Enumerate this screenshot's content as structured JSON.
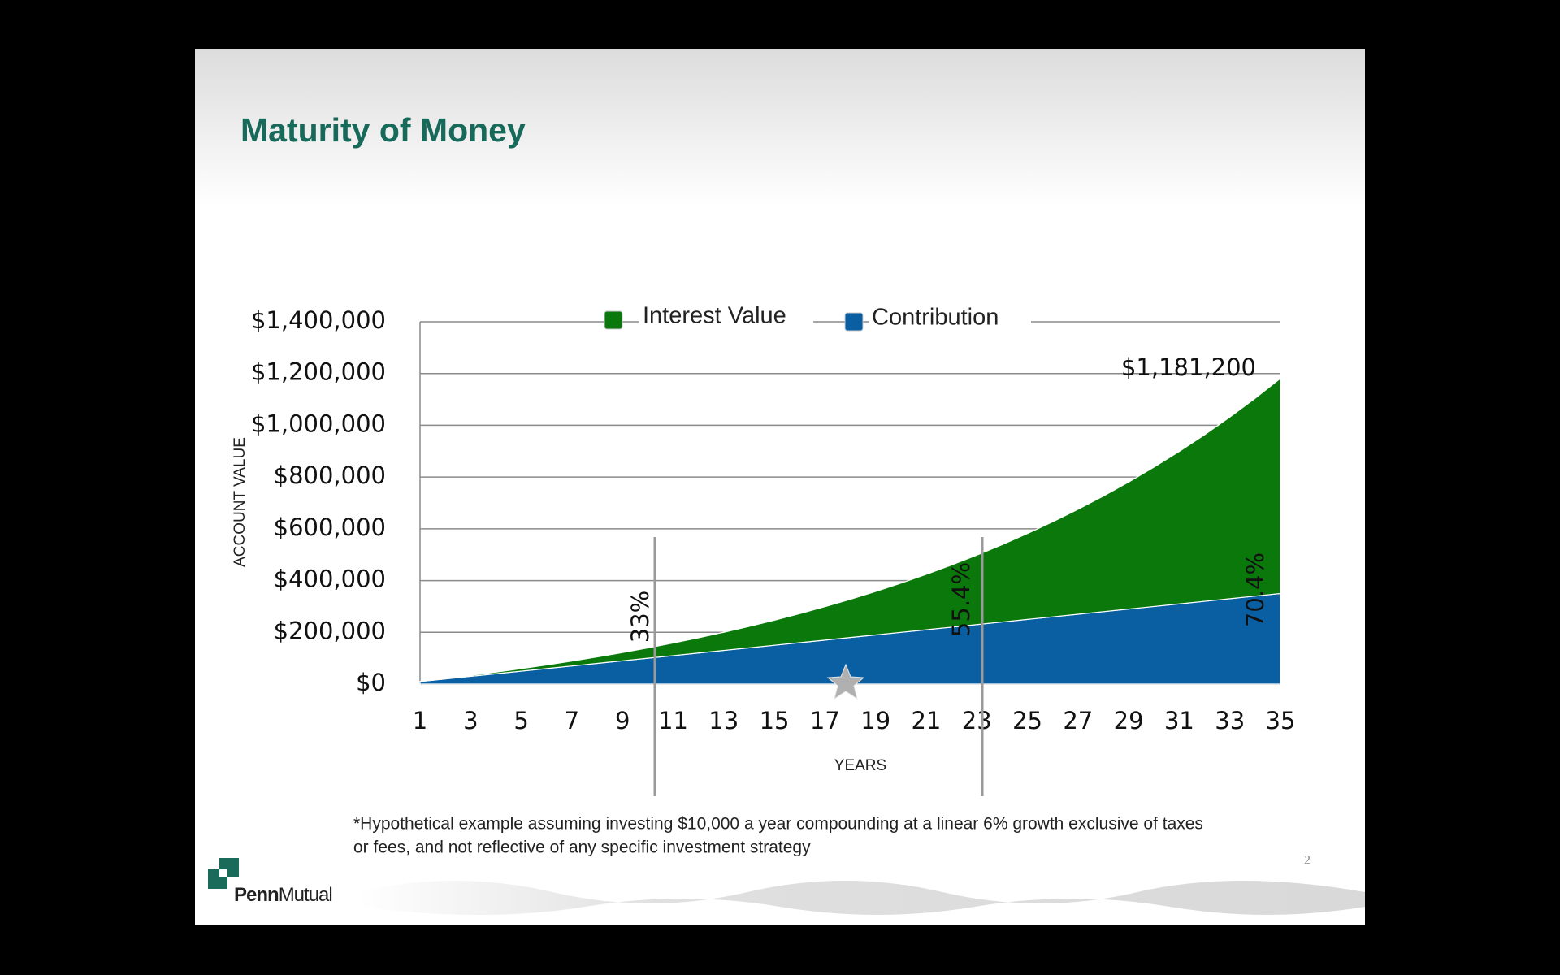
{
  "slide": {
    "title": "Maturity of Money",
    "footnote": [
      "*Hypothetical example assuming investing $10,000 a year compounding at a linear 6% growth exclusive of taxes",
      "or fees, and not reflective of any specific investment strategy"
    ],
    "page_number": "2",
    "logo": [
      "Penn",
      "Mutual"
    ]
  },
  "chart_data": {
    "type": "stacked_area",
    "xlabel": "YEARS",
    "ylabel": "ACCOUNT VALUE",
    "x": [
      1,
      2,
      3,
      4,
      5,
      6,
      7,
      8,
      9,
      10,
      11,
      12,
      13,
      14,
      15,
      16,
      17,
      18,
      19,
      20,
      21,
      22,
      23,
      24,
      25,
      26,
      27,
      28,
      29,
      30,
      31,
      32,
      33,
      34,
      35
    ],
    "series": [
      {
        "name": "Interest Value",
        "color": "#0b780b",
        "values": [
          600,
          1836,
          3746,
          6371,
          9753,
          13938,
          18975,
          24913,
          31808,
          39716,
          48699,
          58821,
          70151,
          82760,
          96725,
          112129,
          129057,
          147600,
          167860,
          189927,
          213923,
          239958,
          268156,
          298645,
          331564,
          367058,
          405281,
          446398,
          490582,
          538017,
          588898,
          643432,
          701837,
          764348,
          831200
        ]
      },
      {
        "name": "Contribution",
        "color": "#0a5fa3",
        "values": [
          10000,
          20000,
          30000,
          40000,
          50000,
          60000,
          70000,
          80000,
          90000,
          100000,
          110000,
          120000,
          130000,
          140000,
          150000,
          160000,
          170000,
          180000,
          190000,
          200000,
          210000,
          220000,
          230000,
          240000,
          250000,
          260000,
          270000,
          280000,
          290000,
          300000,
          310000,
          320000,
          330000,
          340000,
          350000
        ]
      }
    ],
    "xlim": [
      1,
      35
    ],
    "xticks": [
      1,
      3,
      5,
      7,
      9,
      11,
      13,
      15,
      17,
      19,
      21,
      23,
      25,
      27,
      29,
      31,
      33,
      35
    ],
    "ylim": [
      0,
      1400000
    ],
    "yticks": [
      {
        "value": 0,
        "label": "$0"
      },
      {
        "value": 200000,
        "label": "$200,000"
      },
      {
        "value": 400000,
        "label": "$400,000"
      },
      {
        "value": 600000,
        "label": "$600,000"
      },
      {
        "value": 800000,
        "label": "$800,000"
      },
      {
        "value": 1000000,
        "label": "$1,000,000"
      },
      {
        "value": 1200000,
        "label": "$1,200,000"
      },
      {
        "value": 1400000,
        "label": "$1,400,000"
      }
    ],
    "grid": true,
    "annotations": [
      "$1,181,200",
      "33%",
      "55.4%",
      "70.4%"
    ]
  }
}
